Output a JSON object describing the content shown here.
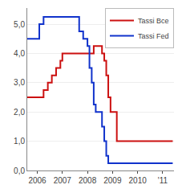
{
  "chart_data": {
    "type": "step",
    "series": [
      {
        "name": "Tassi Bce",
        "color": "#cc1111",
        "x": [
          2005.6,
          2006.0,
          2006.25,
          2006.42,
          2006.58,
          2006.75,
          2006.92,
          2007.0,
          2007.25,
          2007.5,
          2007.75,
          2008.0,
          2008.25,
          2008.5,
          2008.58,
          2008.67,
          2008.75,
          2008.83,
          2008.92,
          2009.0,
          2009.17,
          2009.5,
          2009.75,
          2010.0,
          2010.5,
          2011.0,
          2011.4
        ],
        "values": [
          2.5,
          2.5,
          2.75,
          3.0,
          3.25,
          3.5,
          3.75,
          4.0,
          4.0,
          4.0,
          4.0,
          4.0,
          4.25,
          4.25,
          4.0,
          3.75,
          3.25,
          2.5,
          2.0,
          2.0,
          1.0,
          1.0,
          1.0,
          1.0,
          1.0,
          1.0,
          1.0
        ]
      },
      {
        "name": "Tassi Fed",
        "color": "#1133cc",
        "x": [
          2005.6,
          2006.0,
          2006.08,
          2006.25,
          2006.42,
          2006.58,
          2006.75,
          2006.92,
          2007.0,
          2007.17,
          2007.33,
          2007.5,
          2007.67,
          2007.83,
          2008.0,
          2008.08,
          2008.17,
          2008.25,
          2008.33,
          2008.42,
          2008.5,
          2008.58,
          2008.67,
          2008.75,
          2008.83,
          2008.92,
          2009.0,
          2009.25,
          2010.0,
          2011.4
        ],
        "values": [
          4.5,
          4.5,
          5.0,
          5.25,
          5.25,
          5.25,
          5.25,
          5.25,
          5.25,
          5.25,
          5.25,
          5.25,
          4.75,
          4.5,
          4.25,
          3.5,
          3.0,
          2.25,
          2.0,
          2.0,
          2.0,
          1.5,
          1.0,
          0.5,
          0.25,
          0.25,
          0.25,
          0.25,
          0.25,
          0.25
        ]
      }
    ],
    "xlim": [
      2005.6,
      2011.45
    ],
    "xticks": [
      2006,
      2007,
      2008,
      2009,
      2010,
      {
        "value": 2011,
        "label": "'11"
      }
    ],
    "ylim": [
      0.0,
      5.55
    ],
    "yticks": [
      {
        "value": 0,
        "label": "0,0"
      },
      {
        "value": 1,
        "label": "1,0"
      },
      {
        "value": 2,
        "label": "2,0"
      },
      {
        "value": 3,
        "label": "3,0"
      },
      {
        "value": 4,
        "label": "4,0"
      },
      {
        "value": 5,
        "label": "5,0"
      }
    ],
    "grid": "y",
    "legend": "upper right"
  }
}
